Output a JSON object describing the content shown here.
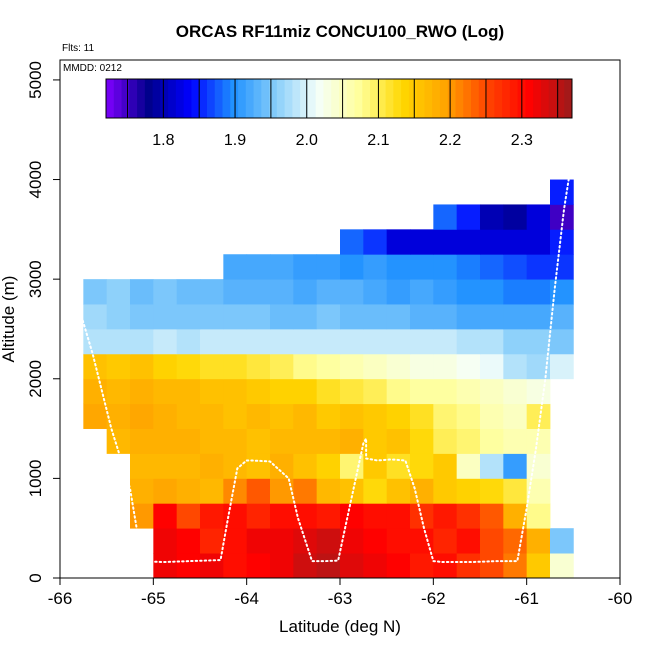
{
  "chart_data": {
    "type": "heatmap",
    "title": "ORCAS RF11miz CONCU100_RWO (Log)",
    "xlabel": "Latitude (deg N)",
    "ylabel": "Altitude (m)",
    "xlim": [
      -66,
      -60
    ],
    "ylim": [
      0,
      5200
    ],
    "x_ticks": [
      -66,
      -65,
      -64,
      -63,
      -62,
      -61,
      -60
    ],
    "x_tick_labels": [
      "-66",
      "-65",
      "-64",
      "-63",
      "-62",
      "-61",
      "-60"
    ],
    "y_ticks": [
      0,
      1000,
      2000,
      3000,
      4000,
      5000
    ],
    "y_tick_labels": [
      "0",
      "1000",
      "2000",
      "3000",
      "4000",
      "5000"
    ],
    "annotations": [
      "Flts: 11",
      "MMDD: 0212"
    ],
    "colorbar": {
      "range": [
        1.72,
        2.37
      ],
      "ticks": [
        1.8,
        1.9,
        2.0,
        2.1,
        2.2,
        2.3
      ],
      "tick_labels": [
        "1.8",
        "1.9",
        "2.0",
        "2.1",
        "2.2",
        "2.3"
      ],
      "stops": [
        "#7f00ff",
        "#00008b",
        "#0000ff",
        "#1e90ff",
        "#87cefa",
        "#f5fffa",
        "#ffff99",
        "#ffd700",
        "#ffa500",
        "#ff4500",
        "#ff0000",
        "#9b1c1c"
      ]
    },
    "grid": {
      "lat_edges": [
        -65.75,
        -65.5,
        -65.25,
        -65.0,
        -64.75,
        -64.5,
        -64.25,
        -64.0,
        -63.75,
        -63.5,
        -63.25,
        -63.0,
        -62.75,
        -62.5,
        -62.25,
        -62.0,
        -61.75,
        -61.5,
        -61.25,
        -61.0,
        -60.75,
        -60.5
      ],
      "alt_edges": [
        0,
        250,
        500,
        750,
        1000,
        1250,
        1500,
        1750,
        2000,
        2250,
        2500,
        2750,
        3000,
        3250,
        3500,
        3750,
        4000
      ],
      "values": [
        [
          null,
          null,
          null,
          2.32,
          2.31,
          2.32,
          2.3,
          2.31,
          2.32,
          2.34,
          2.35,
          2.33,
          2.32,
          2.31,
          2.29,
          2.3,
          2.27,
          2.25,
          2.22,
          2.15,
          2.04
        ],
        [
          null,
          null,
          null,
          2.32,
          2.31,
          2.28,
          2.3,
          2.32,
          2.32,
          2.33,
          2.34,
          2.32,
          2.31,
          2.3,
          2.3,
          2.28,
          2.3,
          2.25,
          2.23,
          2.18,
          1.95
        ],
        [
          null,
          null,
          2.2,
          2.31,
          2.25,
          2.29,
          2.3,
          2.28,
          2.3,
          2.3,
          2.29,
          2.31,
          2.3,
          2.3,
          2.27,
          2.29,
          2.27,
          2.24,
          2.18,
          2.08,
          null
        ],
        [
          null,
          null,
          2.18,
          2.19,
          2.18,
          2.17,
          2.21,
          2.24,
          2.2,
          2.22,
          2.17,
          2.16,
          2.13,
          2.16,
          2.18,
          2.15,
          2.14,
          2.13,
          2.11,
          2.06,
          null
        ],
        [
          null,
          null,
          2.17,
          2.17,
          2.17,
          2.18,
          2.17,
          2.16,
          2.18,
          2.16,
          2.14,
          2.09,
          2.15,
          2.12,
          2.13,
          2.15,
          2.05,
          1.98,
          1.91,
          2.04,
          null
        ],
        [
          null,
          2.17,
          2.18,
          2.18,
          2.18,
          2.17,
          2.17,
          2.16,
          2.17,
          2.17,
          2.17,
          2.18,
          2.15,
          2.16,
          2.13,
          2.1,
          2.09,
          2.07,
          2.06,
          2.06,
          null
        ],
        [
          2.19,
          2.18,
          2.19,
          2.18,
          2.17,
          2.17,
          2.16,
          2.17,
          2.16,
          2.17,
          2.15,
          2.16,
          2.15,
          2.14,
          2.12,
          2.09,
          2.08,
          2.06,
          2.05,
          2.1,
          null
        ],
        [
          2.18,
          2.17,
          2.18,
          2.17,
          2.17,
          2.16,
          2.16,
          2.15,
          2.14,
          2.14,
          2.12,
          2.11,
          2.1,
          2.08,
          2.07,
          2.07,
          2.06,
          2.05,
          2.04,
          2.03,
          null
        ],
        [
          2.16,
          2.15,
          2.16,
          2.14,
          2.13,
          2.12,
          2.12,
          2.11,
          2.1,
          2.08,
          2.07,
          2.06,
          2.05,
          2.04,
          2.03,
          2.03,
          2.02,
          2.01,
          1.98,
          1.97,
          2.0
        ],
        [
          1.98,
          1.98,
          1.98,
          1.99,
          1.98,
          1.99,
          1.99,
          1.99,
          1.99,
          1.99,
          1.99,
          1.99,
          1.99,
          1.99,
          1.99,
          1.99,
          1.98,
          1.98,
          1.96,
          1.96,
          1.95
        ],
        [
          1.97,
          1.96,
          1.95,
          1.95,
          1.95,
          1.95,
          1.95,
          1.95,
          1.94,
          1.94,
          1.95,
          1.94,
          1.94,
          1.94,
          1.93,
          1.93,
          1.92,
          1.92,
          1.92,
          1.92,
          1.93
        ],
        [
          1.95,
          1.96,
          1.94,
          1.95,
          1.94,
          1.94,
          1.93,
          1.93,
          1.93,
          1.92,
          1.93,
          1.93,
          1.92,
          1.91,
          1.92,
          1.91,
          1.9,
          1.9,
          1.89,
          1.89,
          1.9
        ],
        [
          null,
          null,
          null,
          null,
          null,
          null,
          1.92,
          1.92,
          1.92,
          1.91,
          1.91,
          1.9,
          1.91,
          1.9,
          1.9,
          1.9,
          1.89,
          1.88,
          1.87,
          1.86,
          1.86
        ],
        [
          null,
          null,
          null,
          null,
          null,
          null,
          null,
          null,
          null,
          null,
          null,
          1.88,
          1.86,
          1.82,
          1.82,
          1.82,
          1.82,
          1.82,
          1.82,
          1.82,
          1.85
        ],
        [
          null,
          null,
          null,
          null,
          null,
          null,
          null,
          null,
          null,
          null,
          null,
          null,
          null,
          null,
          null,
          1.88,
          1.85,
          1.8,
          1.79,
          1.82,
          1.75
        ],
        [
          null,
          null,
          null,
          null,
          null,
          null,
          null,
          null,
          null,
          null,
          null,
          null,
          null,
          null,
          null,
          null,
          null,
          null,
          null,
          null,
          1.85
        ]
      ]
    },
    "flight_track": {
      "lat": [
        -66.0,
        -65.85,
        -65.65,
        -65.45,
        -65.25,
        -65.12,
        -64.9,
        -64.6,
        -64.28,
        -64.2,
        -64.1,
        -64.0,
        -63.95,
        -63.75,
        -63.55,
        -63.45,
        -63.3,
        -63.15,
        -63.02,
        -62.9,
        -62.75,
        -62.72,
        -62.72,
        -62.6,
        -62.45,
        -62.3,
        -62.2,
        -62.1,
        -62.0,
        -61.9,
        -61.6,
        -61.3,
        -61.1,
        -61.0,
        -60.9,
        -60.8,
        -60.7,
        -60.6,
        -60.55
      ],
      "alt": [
        2900,
        2880,
        2250,
        1500,
        900,
        170,
        160,
        170,
        180,
        600,
        1100,
        1180,
        1180,
        1170,
        1000,
        600,
        170,
        170,
        175,
        700,
        1350,
        1400,
        1200,
        1180,
        1190,
        1180,
        900,
        500,
        170,
        160,
        160,
        170,
        170,
        700,
        1300,
        2000,
        2900,
        3700,
        4000
      ]
    }
  }
}
